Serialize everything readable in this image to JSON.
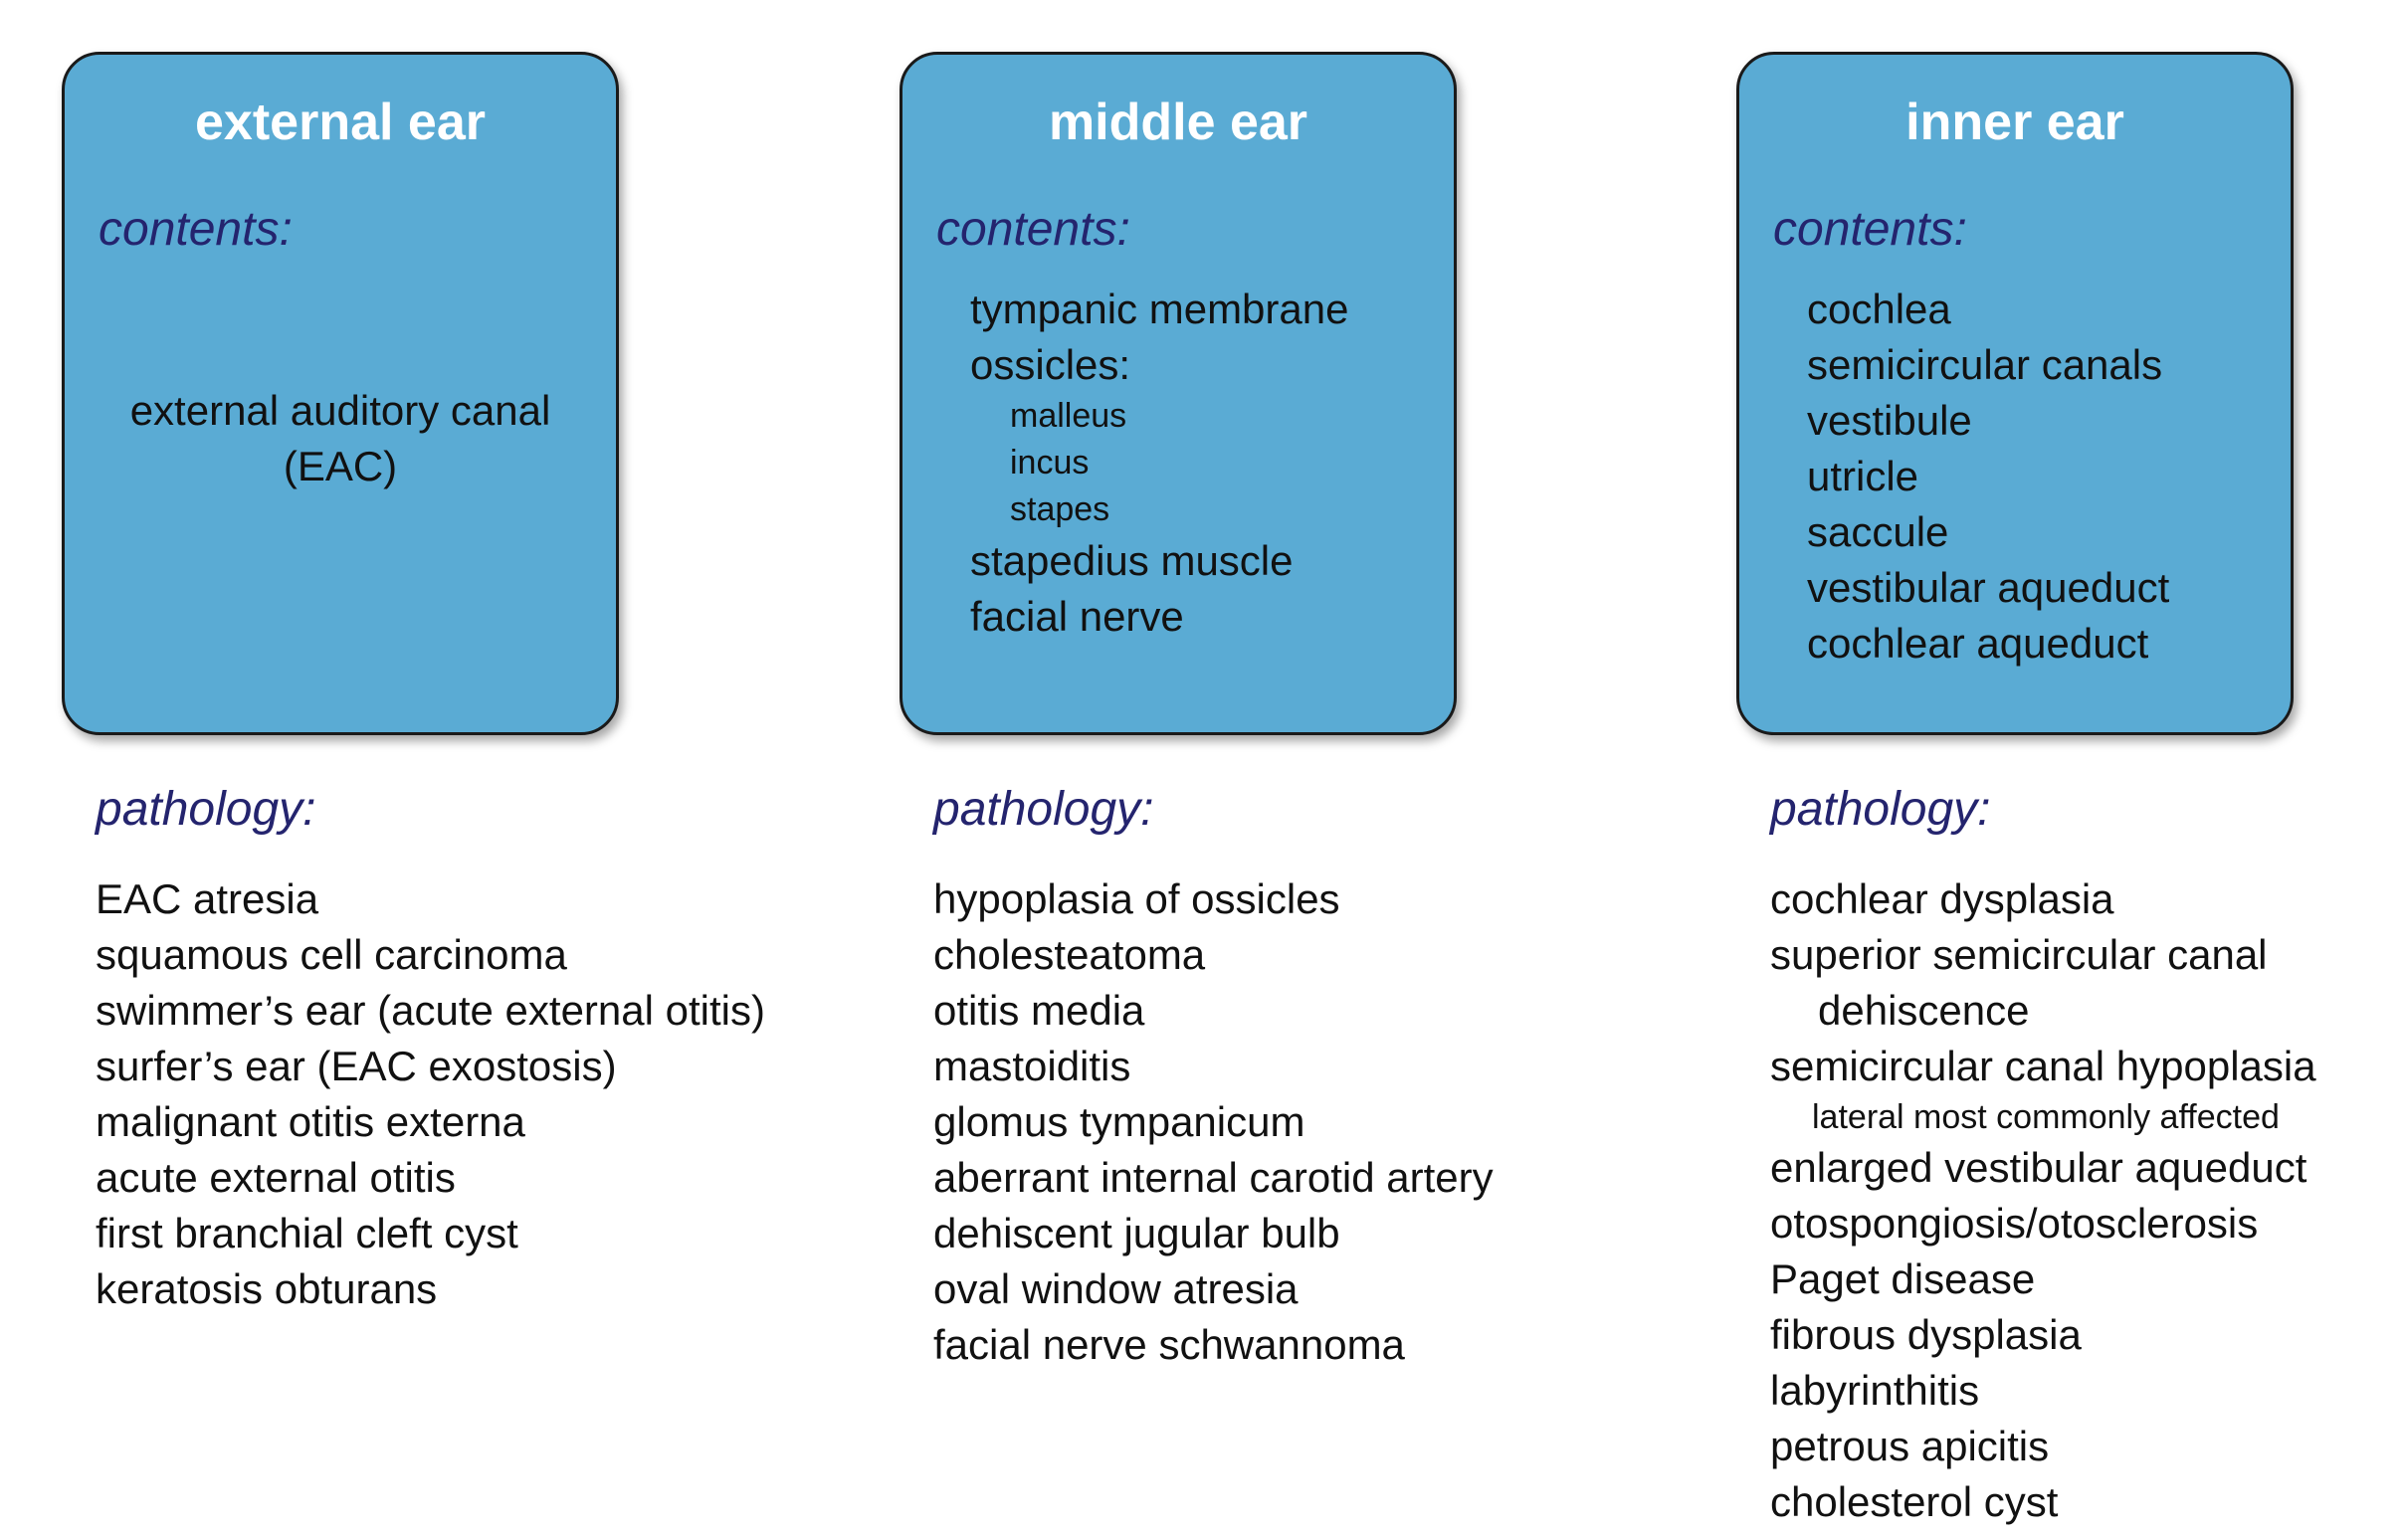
{
  "external": {
    "title": "external ear",
    "contents_label": "contents:",
    "contents": [
      "external auditory canal",
      "(EAC)"
    ],
    "pathology_label": "pathology:",
    "pathology": [
      "EAC atresia",
      "squamous cell carcinoma",
      "swimmer’s ear (acute external otitis)",
      "surfer’s ear (EAC exostosis)",
      "malignant otitis externa",
      "acute external otitis",
      "first branchial cleft cyst",
      "keratosis obturans"
    ]
  },
  "middle": {
    "title": "middle ear",
    "contents_label": "contents:",
    "contents": [
      "tympanic membrane",
      "ossicles:",
      "malleus",
      "incus",
      "stapes",
      "stapedius muscle",
      "facial nerve"
    ],
    "pathology_label": "pathology:",
    "pathology": [
      "hypoplasia of ossicles",
      "cholesteatoma",
      "otitis media",
      "mastoiditis",
      "glomus tympanicum",
      "aberrant internal carotid artery",
      "dehiscent jugular bulb",
      "oval window atresia",
      "facial nerve schwannoma"
    ]
  },
  "inner": {
    "title": "inner ear",
    "contents_label": "contents:",
    "contents": [
      "cochlea",
      "semicircular canals",
      "vestibule",
      "utricle",
      "saccule",
      "vestibular aqueduct",
      "cochlear aqueduct"
    ],
    "pathology_label": "pathology:",
    "pathology": [
      "cochlear dysplasia",
      "superior semicircular canal",
      "dehiscence",
      "semicircular canal hypoplasia",
      "lateral most commonly affected",
      "enlarged vestibular aqueduct",
      "otospongiosis/otosclerosis",
      "Paget disease",
      "fibrous dysplasia",
      "labyrinthitis",
      "petrous apicitis",
      "cholesterol cyst"
    ]
  },
  "colors": {
    "box_fill": "#5aabd4",
    "box_border": "#1a1a1a",
    "title_text": "#ffffff",
    "label_text": "#24246e",
    "body_text": "#111111"
  }
}
